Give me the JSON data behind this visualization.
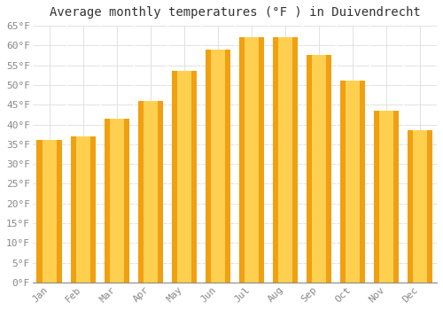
{
  "title": "Average monthly temperatures (°F ) in Duivendrecht",
  "months": [
    "Jan",
    "Feb",
    "Mar",
    "Apr",
    "May",
    "Jun",
    "Jul",
    "Aug",
    "Sep",
    "Oct",
    "Nov",
    "Dec"
  ],
  "values": [
    36,
    37,
    41.5,
    46,
    53.5,
    59,
    62,
    62,
    57.5,
    51,
    43.5,
    38.5
  ],
  "bar_color_center": "#FFD050",
  "bar_color_edge": "#F0A010",
  "background_color": "#FFFFFF",
  "grid_color": "#DDDDDD",
  "ylim": [
    0,
    65
  ],
  "yticks": [
    0,
    5,
    10,
    15,
    20,
    25,
    30,
    35,
    40,
    45,
    50,
    55,
    60,
    65
  ],
  "title_fontsize": 10,
  "tick_fontsize": 8,
  "tick_font_color": "#888888",
  "title_color": "#333333"
}
